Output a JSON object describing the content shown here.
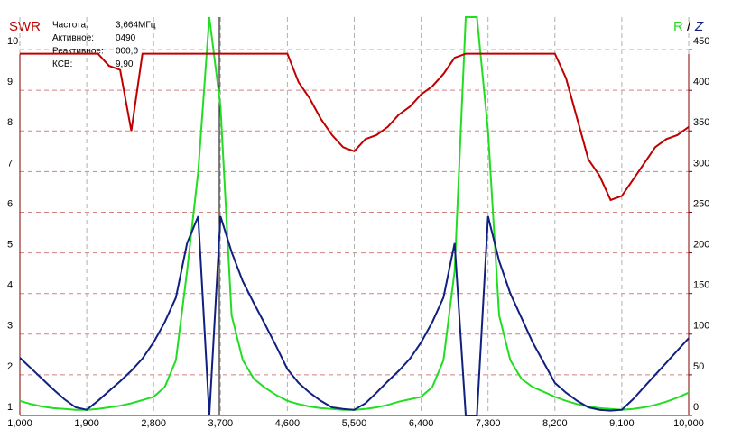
{
  "chart_data": {
    "type": "line",
    "title": "SWR",
    "legend_separator": "/",
    "readout": [
      {
        "label": "Частота:",
        "value": "3,664МГц"
      },
      {
        "label": "Активное:",
        "value": "0490"
      },
      {
        "label": "Реактивное:",
        "value": "000,0"
      },
      {
        "label": "КСВ:",
        "value": "9,90"
      }
    ],
    "x": [
      1000,
      1150,
      1300,
      1450,
      1600,
      1750,
      1900,
      2050,
      2200,
      2350,
      2500,
      2650,
      2800,
      2950,
      3100,
      3250,
      3400,
      3550,
      3700,
      3850,
      4000,
      4150,
      4300,
      4450,
      4600,
      4750,
      4900,
      5050,
      5200,
      5350,
      5500,
      5650,
      5800,
      5950,
      6100,
      6250,
      6400,
      6550,
      6700,
      6850,
      7000,
      7150,
      7300,
      7450,
      7600,
      7750,
      7900,
      8050,
      8200,
      8350,
      8500,
      8650,
      8800,
      8950,
      9100,
      9250,
      9400,
      9550,
      9700,
      9850,
      10000
    ],
    "series": [
      {
        "name": "SWR",
        "color": "#c00000",
        "axis": "y",
        "values": [
          9.9,
          9.9,
          9.9,
          9.9,
          9.9,
          9.9,
          9.9,
          9.9,
          9.6,
          9.5,
          8.0,
          9.9,
          9.9,
          9.9,
          9.9,
          9.9,
          9.9,
          9.9,
          9.9,
          9.9,
          9.9,
          9.9,
          9.9,
          9.9,
          9.9,
          9.2,
          8.8,
          8.3,
          7.9,
          7.6,
          7.5,
          7.8,
          7.9,
          8.1,
          8.4,
          8.6,
          8.9,
          9.1,
          9.4,
          9.8,
          9.9,
          9.9,
          9.9,
          9.9,
          9.9,
          9.9,
          9.9,
          9.9,
          9.9,
          9.3,
          8.3,
          7.3,
          6.9,
          6.3,
          6.4,
          6.8,
          7.2,
          7.6,
          7.8,
          7.9,
          8.1
        ]
      },
      {
        "name": "R",
        "color": "#22dd22",
        "axis": "y2",
        "values": [
          18,
          14,
          11,
          9,
          8,
          7,
          7,
          8,
          10,
          12,
          15,
          19,
          23,
          35,
          68,
          178,
          300,
          490,
          380,
          123,
          68,
          45,
          34,
          25,
          18,
          14,
          11,
          9,
          8,
          7,
          7,
          8,
          10,
          13,
          17,
          20,
          23,
          35,
          68,
          178,
          490,
          490,
          350,
          123,
          68,
          45,
          35,
          29,
          23,
          18,
          14,
          11,
          9,
          8,
          7,
          8,
          10,
          13,
          17,
          22,
          28
        ]
      },
      {
        "name": "Z",
        "color": "#102080",
        "axis": "y2",
        "values": [
          71,
          58,
          45,
          32,
          20,
          10,
          7,
          18,
          30,
          42,
          55,
          70,
          90,
          115,
          145,
          212,
          245,
          0,
          245,
          201,
          165,
          138,
          112,
          85,
          57,
          40,
          28,
          18,
          10,
          8,
          7,
          15,
          28,
          42,
          55,
          70,
          90,
          115,
          145,
          212,
          0,
          0,
          245,
          190,
          150,
          120,
          90,
          65,
          40,
          28,
          18,
          10,
          7,
          6,
          7,
          20,
          35,
          50,
          65,
          80,
          95
        ]
      }
    ],
    "xlim": [
      1000,
      10000
    ],
    "xticks": [
      {
        "value": 1000,
        "label": "1,000"
      },
      {
        "value": 1900,
        "label": "1,900"
      },
      {
        "value": 2800,
        "label": "2,800"
      },
      {
        "value": 3700,
        "label": "3,700"
      },
      {
        "value": 4600,
        "label": "4,600"
      },
      {
        "value": 5500,
        "label": "5,500"
      },
      {
        "value": 6400,
        "label": "6,400"
      },
      {
        "value": 7300,
        "label": "7,300"
      },
      {
        "value": 8200,
        "label": "8,200"
      },
      {
        "value": 9100,
        "label": "9,100"
      },
      {
        "value": 10000,
        "label": "10,000"
      }
    ],
    "ylim": [
      1,
      10.8
    ],
    "yticks": [
      1,
      2,
      3,
      4,
      5,
      6,
      7,
      8,
      9,
      10
    ],
    "y2lim": [
      0,
      490
    ],
    "y2ticks": [
      0,
      50,
      100,
      150,
      200,
      250,
      300,
      350,
      400,
      450
    ],
    "grid": true
  }
}
